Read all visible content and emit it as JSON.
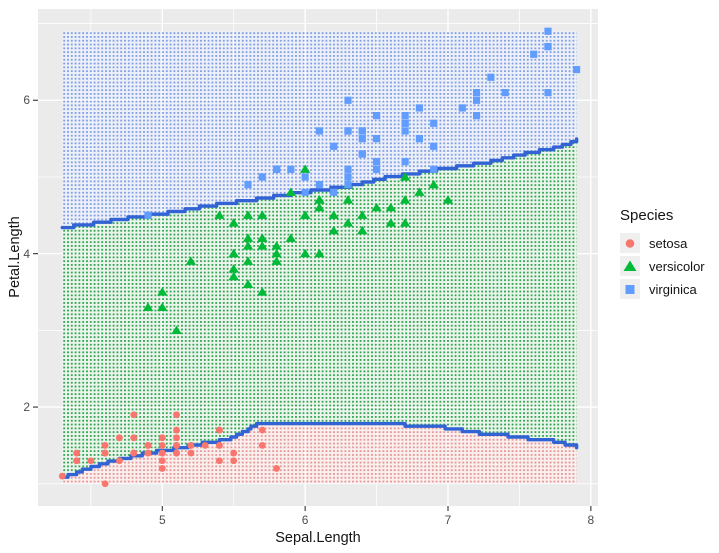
{
  "panel": {
    "bg": "#ebebeb",
    "grid_color": "#ffffff",
    "tick_mark_color": "#333333",
    "tick_label_color": "#4d4d4d",
    "title_color": "#141414"
  },
  "axes": {
    "x": {
      "label": "Sepal.Length",
      "ticks": [
        5,
        6,
        7,
        8
      ],
      "minor": [
        4.5,
        5.5,
        6.5,
        7.5
      ]
    },
    "y": {
      "label": "Petal.Length",
      "ticks": [
        2,
        4,
        6
      ],
      "minor": [
        1,
        3,
        5,
        7
      ]
    }
  },
  "legend": {
    "title": "Species",
    "key_bg": "#efefef",
    "entries": [
      {
        "label": "setosa",
        "shape": "circle",
        "color": "#F8766D"
      },
      {
        "label": "versicolor",
        "shape": "triangle",
        "color": "#00BA38"
      },
      {
        "label": "virginica",
        "shape": "square",
        "color": "#619CFF"
      }
    ]
  },
  "chart_data": {
    "type": "scatter",
    "title": "",
    "xlabel": "Sepal.Length",
    "ylabel": "Petal.Length",
    "xlim": [
      4.13,
      8.05
    ],
    "ylim": [
      0.71,
      7.19
    ],
    "grid": true,
    "legend_position": "right",
    "decision_grid": {
      "x": [
        4.3,
        7.9
      ],
      "y": [
        1.0,
        6.9
      ],
      "dot_spacing_px": 3.8
    },
    "boundaries": {
      "color": "#3263d4",
      "lower": [
        [
          4.3,
          1.08
        ],
        [
          4.5,
          1.22
        ],
        [
          4.7,
          1.32
        ],
        [
          4.9,
          1.4
        ],
        [
          5.1,
          1.46
        ],
        [
          5.3,
          1.53
        ],
        [
          5.45,
          1.58
        ],
        [
          5.55,
          1.66
        ],
        [
          5.68,
          1.8
        ],
        [
          6.6,
          1.8
        ],
        [
          6.75,
          1.75
        ],
        [
          7.0,
          1.73
        ],
        [
          7.15,
          1.67
        ],
        [
          7.35,
          1.64
        ],
        [
          7.55,
          1.59
        ],
        [
          7.7,
          1.57
        ],
        [
          7.8,
          1.53
        ],
        [
          7.9,
          1.48
        ]
      ],
      "upper": [
        [
          4.3,
          4.34
        ],
        [
          4.5,
          4.39
        ],
        [
          4.7,
          4.45
        ],
        [
          4.9,
          4.5
        ],
        [
          5.1,
          4.55
        ],
        [
          5.3,
          4.62
        ],
        [
          5.5,
          4.67
        ],
        [
          5.7,
          4.72
        ],
        [
          5.9,
          4.78
        ],
        [
          6.1,
          4.83
        ],
        [
          6.3,
          4.88
        ],
        [
          6.5,
          4.97
        ],
        [
          6.7,
          5.03
        ],
        [
          6.9,
          5.09
        ],
        [
          7.1,
          5.14
        ],
        [
          7.3,
          5.2
        ],
        [
          7.5,
          5.29
        ],
        [
          7.7,
          5.36
        ],
        [
          7.85,
          5.44
        ],
        [
          7.9,
          5.5
        ]
      ]
    },
    "series": [
      {
        "name": "setosa",
        "shape": "circle",
        "color": "#F8766D",
        "region_dot": "#E59492",
        "region_bg": "#F9EFEE",
        "points": [
          [
            5.1,
            1.4
          ],
          [
            4.9,
            1.4
          ],
          [
            4.7,
            1.3
          ],
          [
            4.6,
            1.5
          ],
          [
            5.0,
            1.4
          ],
          [
            5.4,
            1.7
          ],
          [
            4.6,
            1.4
          ],
          [
            5.0,
            1.5
          ],
          [
            4.4,
            1.4
          ],
          [
            4.9,
            1.5
          ],
          [
            5.4,
            1.5
          ],
          [
            4.8,
            1.6
          ],
          [
            4.8,
            1.4
          ],
          [
            4.3,
            1.1
          ],
          [
            5.8,
            1.2
          ],
          [
            5.7,
            1.5
          ],
          [
            5.4,
            1.3
          ],
          [
            5.1,
            1.4
          ],
          [
            5.7,
            1.7
          ],
          [
            5.1,
            1.5
          ],
          [
            5.4,
            1.7
          ],
          [
            5.1,
            1.5
          ],
          [
            4.6,
            1.0
          ],
          [
            5.1,
            1.7
          ],
          [
            4.8,
            1.9
          ],
          [
            5.0,
            1.6
          ],
          [
            5.0,
            1.6
          ],
          [
            5.2,
            1.5
          ],
          [
            5.2,
            1.4
          ],
          [
            4.7,
            1.6
          ],
          [
            4.8,
            1.6
          ],
          [
            5.4,
            1.5
          ],
          [
            5.2,
            1.5
          ],
          [
            5.5,
            1.4
          ],
          [
            4.9,
            1.5
          ],
          [
            5.0,
            1.2
          ],
          [
            5.5,
            1.3
          ],
          [
            4.9,
            1.4
          ],
          [
            4.4,
            1.3
          ],
          [
            5.1,
            1.5
          ],
          [
            5.0,
            1.3
          ],
          [
            4.5,
            1.3
          ],
          [
            4.4,
            1.3
          ],
          [
            5.0,
            1.6
          ],
          [
            5.1,
            1.9
          ],
          [
            4.8,
            1.4
          ],
          [
            5.1,
            1.6
          ],
          [
            4.6,
            1.4
          ],
          [
            5.3,
            1.5
          ],
          [
            5.0,
            1.4
          ]
        ]
      },
      {
        "name": "versicolor",
        "shape": "triangle",
        "color": "#00BA38",
        "region_dot": "#2AA14D",
        "region_bg": "#ECF5EC",
        "points": [
          [
            7.0,
            4.7
          ],
          [
            6.4,
            4.5
          ],
          [
            6.9,
            4.9
          ],
          [
            5.5,
            4.0
          ],
          [
            6.5,
            4.6
          ],
          [
            5.7,
            4.5
          ],
          [
            6.3,
            4.7
          ],
          [
            4.9,
            3.3
          ],
          [
            6.6,
            4.6
          ],
          [
            5.2,
            3.9
          ],
          [
            5.0,
            3.5
          ],
          [
            5.9,
            4.2
          ],
          [
            6.0,
            4.0
          ],
          [
            6.1,
            4.7
          ],
          [
            5.6,
            3.6
          ],
          [
            6.7,
            4.4
          ],
          [
            5.6,
            4.5
          ],
          [
            5.8,
            4.1
          ],
          [
            6.2,
            4.5
          ],
          [
            5.6,
            3.9
          ],
          [
            5.9,
            4.8
          ],
          [
            6.1,
            4.0
          ],
          [
            6.3,
            4.9
          ],
          [
            6.1,
            4.7
          ],
          [
            6.4,
            4.3
          ],
          [
            6.6,
            4.4
          ],
          [
            6.8,
            4.8
          ],
          [
            6.7,
            5.0
          ],
          [
            6.0,
            4.5
          ],
          [
            5.7,
            3.5
          ],
          [
            5.5,
            3.8
          ],
          [
            5.5,
            3.7
          ],
          [
            5.8,
            3.9
          ],
          [
            6.0,
            5.1
          ],
          [
            5.4,
            4.5
          ],
          [
            6.0,
            4.5
          ],
          [
            6.7,
            4.7
          ],
          [
            6.3,
            4.4
          ],
          [
            5.6,
            4.1
          ],
          [
            5.5,
            4.0
          ],
          [
            5.5,
            4.4
          ],
          [
            6.1,
            4.6
          ],
          [
            5.8,
            4.0
          ],
          [
            5.0,
            3.3
          ],
          [
            5.6,
            4.2
          ],
          [
            5.7,
            4.2
          ],
          [
            5.7,
            4.2
          ],
          [
            6.2,
            4.3
          ],
          [
            5.1,
            3.0
          ],
          [
            5.7,
            4.1
          ]
        ]
      },
      {
        "name": "virginica",
        "shape": "square",
        "color": "#619CFF",
        "region_dot": "#7B9CE4",
        "region_bg": "#EDF0F8",
        "points": [
          [
            6.3,
            6.0
          ],
          [
            5.8,
            5.1
          ],
          [
            7.1,
            5.9
          ],
          [
            6.3,
            5.6
          ],
          [
            6.5,
            5.8
          ],
          [
            7.6,
            6.6
          ],
          [
            4.9,
            4.5
          ],
          [
            7.3,
            6.3
          ],
          [
            6.7,
            5.8
          ],
          [
            7.2,
            6.1
          ],
          [
            6.5,
            5.1
          ],
          [
            6.4,
            5.3
          ],
          [
            6.8,
            5.5
          ],
          [
            5.7,
            5.0
          ],
          [
            5.8,
            5.1
          ],
          [
            6.4,
            5.3
          ],
          [
            6.5,
            5.5
          ],
          [
            7.7,
            6.7
          ],
          [
            7.7,
            6.9
          ],
          [
            6.0,
            5.0
          ],
          [
            6.9,
            5.7
          ],
          [
            5.6,
            4.9
          ],
          [
            7.7,
            6.7
          ],
          [
            6.3,
            4.9
          ],
          [
            6.7,
            5.7
          ],
          [
            7.2,
            6.0
          ],
          [
            6.2,
            4.8
          ],
          [
            6.1,
            4.9
          ],
          [
            6.4,
            5.6
          ],
          [
            7.2,
            5.8
          ],
          [
            7.4,
            6.1
          ],
          [
            7.9,
            6.4
          ],
          [
            6.4,
            5.6
          ],
          [
            6.3,
            5.1
          ],
          [
            6.1,
            5.6
          ],
          [
            7.7,
            6.1
          ],
          [
            6.3,
            5.6
          ],
          [
            6.4,
            5.5
          ],
          [
            6.0,
            4.8
          ],
          [
            6.9,
            5.4
          ],
          [
            6.7,
            5.6
          ],
          [
            6.9,
            5.1
          ],
          [
            5.8,
            5.1
          ],
          [
            6.8,
            5.9
          ],
          [
            6.7,
            5.7
          ],
          [
            6.7,
            5.2
          ],
          [
            6.3,
            5.0
          ],
          [
            6.5,
            5.2
          ],
          [
            6.2,
            5.4
          ],
          [
            5.9,
            5.1
          ]
        ]
      }
    ]
  }
}
